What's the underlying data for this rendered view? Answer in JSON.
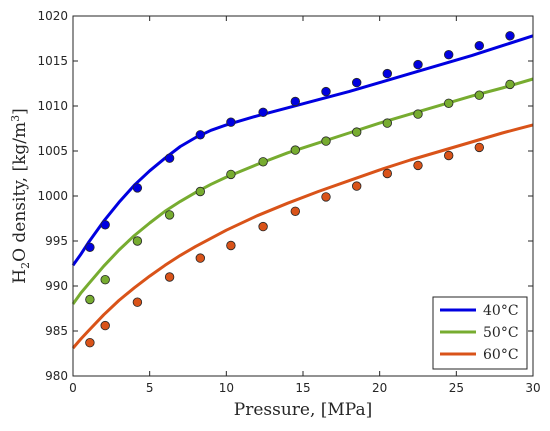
{
  "chart_data": {
    "type": "line",
    "title": "",
    "xlabel": "Pressure,  [MPa]",
    "ylabel_main": "H",
    "ylabel_sub": "2",
    "ylabel_mid": "O density,  [kg/m",
    "ylabel_sup": "3",
    "ylabel_end": "]",
    "xlim": [
      0,
      30
    ],
    "ylim": [
      980,
      1020
    ],
    "xticks": [
      0,
      5,
      10,
      15,
      20,
      25,
      30
    ],
    "yticks": [
      980,
      985,
      990,
      995,
      1000,
      1005,
      1010,
      1015,
      1020
    ],
    "grid": false,
    "legend_position": "bottom-right",
    "series": [
      {
        "name": "40°C",
        "color": "#0000e0",
        "line": {
          "x": [
            0,
            0.5,
            1,
            2,
            3,
            4,
            5,
            6,
            7,
            8,
            9,
            10,
            12,
            14,
            16,
            18,
            20,
            22,
            24,
            26,
            28,
            30
          ],
          "y": [
            992.3,
            993.5,
            994.8,
            997.2,
            999.3,
            1001.2,
            1002.8,
            1004.2,
            1005.5,
            1006.5,
            1007.3,
            1007.9,
            1008.9,
            1009.8,
            1010.7,
            1011.6,
            1012.6,
            1013.6,
            1014.6,
            1015.6,
            1016.7,
            1017.8
          ]
        },
        "points": {
          "x": [
            1.1,
            2.1,
            4.2,
            6.3,
            8.3,
            10.3,
            12.4,
            14.5,
            16.5,
            18.5,
            20.5,
            22.5,
            24.5,
            26.5,
            28.5
          ],
          "y": [
            994.3,
            996.8,
            1000.9,
            1004.2,
            1006.8,
            1008.2,
            1009.3,
            1010.5,
            1011.6,
            1012.6,
            1013.6,
            1014.6,
            1015.7,
            1016.7,
            1017.8
          ]
        }
      },
      {
        "name": "50°C",
        "color": "#77ac30",
        "line": {
          "x": [
            0,
            0.5,
            1,
            2,
            3,
            4,
            5,
            6,
            7,
            8,
            9,
            10,
            12,
            14,
            16,
            18,
            20,
            22,
            24,
            26,
            28,
            30
          ],
          "y": [
            988.0,
            989.2,
            990.2,
            992.2,
            994.0,
            995.6,
            997.0,
            998.3,
            999.4,
            1000.4,
            1001.3,
            1002.1,
            1003.5,
            1004.8,
            1005.9,
            1007.0,
            1008.1,
            1009.1,
            1010.1,
            1011.1,
            1012.0,
            1013.0
          ]
        },
        "points": {
          "x": [
            1.1,
            2.1,
            4.2,
            6.3,
            8.3,
            10.3,
            12.4,
            14.5,
            16.5,
            18.5,
            20.5,
            22.5,
            24.5,
            26.5,
            28.5
          ],
          "y": [
            988.5,
            990.7,
            995.0,
            997.9,
            1000.5,
            1002.4,
            1003.8,
            1005.1,
            1006.1,
            1007.1,
            1008.1,
            1009.1,
            1010.3,
            1011.2,
            1012.4
          ]
        }
      },
      {
        "name": "60°C",
        "color": "#d95319",
        "line": {
          "x": [
            0,
            0.5,
            1,
            2,
            3,
            4,
            5,
            6,
            7,
            8,
            9,
            10,
            12,
            14,
            16,
            18,
            20,
            22,
            24,
            26,
            28,
            30
          ],
          "y": [
            983.1,
            984.1,
            985.0,
            986.8,
            988.4,
            989.8,
            991.1,
            992.3,
            993.4,
            994.4,
            995.3,
            996.2,
            997.8,
            999.2,
            1000.5,
            1001.7,
            1002.9,
            1004.0,
            1005.0,
            1006.0,
            1007.0,
            1007.9
          ]
        },
        "points": {
          "x": [
            1.1,
            2.1,
            4.2,
            6.3,
            8.3,
            10.3,
            12.4,
            14.5,
            16.5,
            18.5,
            20.5,
            22.5,
            24.5,
            26.5
          ],
          "y": [
            983.7,
            985.6,
            988.2,
            991.0,
            993.1,
            994.5,
            996.6,
            998.3,
            999.9,
            1001.1,
            1002.5,
            1003.4,
            1004.5,
            1005.4
          ]
        }
      }
    ]
  }
}
